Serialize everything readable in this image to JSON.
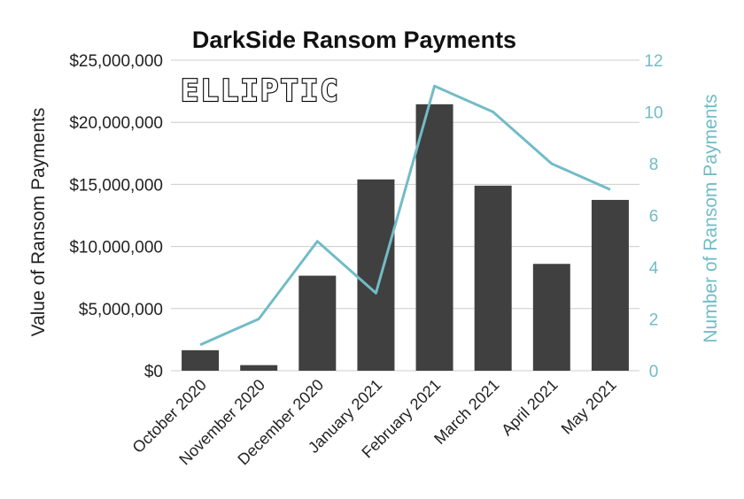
{
  "chart_data": {
    "type": "bar",
    "title": "DarkSide Ransom Payments",
    "logo_text": "ELLIPTIC",
    "categories": [
      "October 2020",
      "November 2020",
      "December 2020",
      "January 2021",
      "February 2021",
      "March 2021",
      "April 2021",
      "May 2021"
    ],
    "ylabel": "Value of Ransom Payments",
    "y2label": "Number of Ransom Payments",
    "ylim": [
      0,
      25000000
    ],
    "y2lim": [
      0,
      12
    ],
    "yticks": [
      "$0",
      "$5,000,000",
      "$10,000,000",
      "$15,000,000",
      "$20,000,000",
      "$25,000,000"
    ],
    "y2ticks": [
      "0",
      "2",
      "4",
      "6",
      "8",
      "10",
      "12"
    ],
    "grid": true,
    "series": [
      {
        "kind": "bar",
        "axis": "left",
        "color": "#404040",
        "values": [
          1650000,
          450000,
          7650000,
          15400000,
          21450000,
          14900000,
          8600000,
          13750000
        ]
      },
      {
        "kind": "line",
        "axis": "right",
        "color": "#72bcc6",
        "values": [
          1,
          2,
          5,
          3,
          11,
          10,
          8,
          7
        ]
      }
    ],
    "colors": {
      "bar": "#404040",
      "line": "#72bcc6",
      "right_axis_text": "#72bcc6",
      "grid": "#cccccc"
    }
  }
}
